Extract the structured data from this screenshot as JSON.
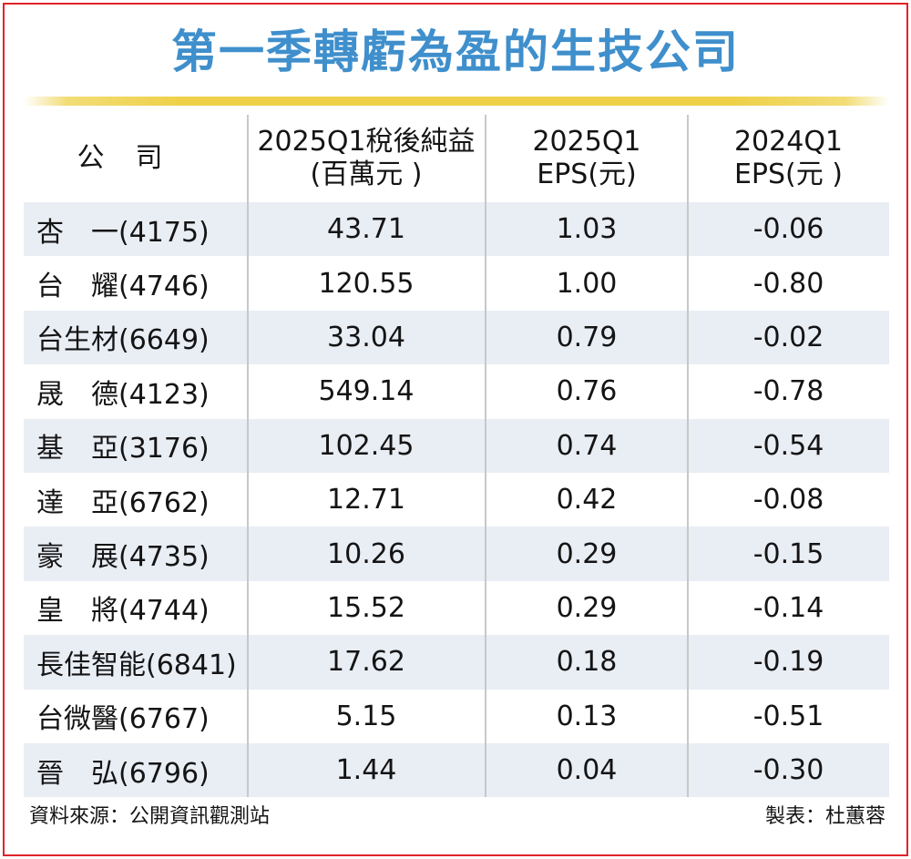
{
  "chart_data": {
    "type": "table",
    "title": "第一季轉虧為盈的生技公司",
    "columns": [
      [
        "公司"
      ],
      [
        "2025Q1稅後純益",
        "(百萬元 )"
      ],
      [
        "2025Q1",
        "EPS(元)"
      ],
      [
        "2024Q1",
        "EPS(元 )"
      ]
    ],
    "rows": [
      {
        "company": "杏　一(4175)",
        "net_income": "43.71",
        "eps_2025q1": "1.03",
        "eps_2024q1": "-0.06"
      },
      {
        "company": "台　耀(4746)",
        "net_income": "120.55",
        "eps_2025q1": "1.00",
        "eps_2024q1": "-0.80"
      },
      {
        "company": "台生材(6649)",
        "net_income": "33.04",
        "eps_2025q1": "0.79",
        "eps_2024q1": "-0.02"
      },
      {
        "company": "晟　德(4123)",
        "net_income": "549.14",
        "eps_2025q1": "0.76",
        "eps_2024q1": "-0.78"
      },
      {
        "company": "基　亞(3176)",
        "net_income": "102.45",
        "eps_2025q1": "0.74",
        "eps_2024q1": "-0.54"
      },
      {
        "company": "達　亞(6762)",
        "net_income": "12.71",
        "eps_2025q1": "0.42",
        "eps_2024q1": "-0.08"
      },
      {
        "company": "豪　展(4735)",
        "net_income": "10.26",
        "eps_2025q1": "0.29",
        "eps_2024q1": "-0.15"
      },
      {
        "company": "皇　將(4744)",
        "net_income": "15.52",
        "eps_2025q1": "0.29",
        "eps_2024q1": "-0.14"
      },
      {
        "company": "長佳智能(6841)",
        "net_income": "17.62",
        "eps_2025q1": "0.18",
        "eps_2024q1": "-0.19"
      },
      {
        "company": "台微醫(6767)",
        "net_income": "5.15",
        "eps_2025q1": "0.13",
        "eps_2024q1": "-0.51"
      },
      {
        "company": "晉　弘(6796)",
        "net_income": "1.44",
        "eps_2025q1": "0.04",
        "eps_2024q1": "-0.30"
      }
    ]
  },
  "footer": {
    "source": "資料來源：公開資訊觀測站",
    "credit": "製表：杜蕙蓉"
  },
  "colors": {
    "title": "#3f8fcc",
    "rule": "#eed149",
    "stripe": "#e9edf4",
    "frame": "#e0232a"
  }
}
